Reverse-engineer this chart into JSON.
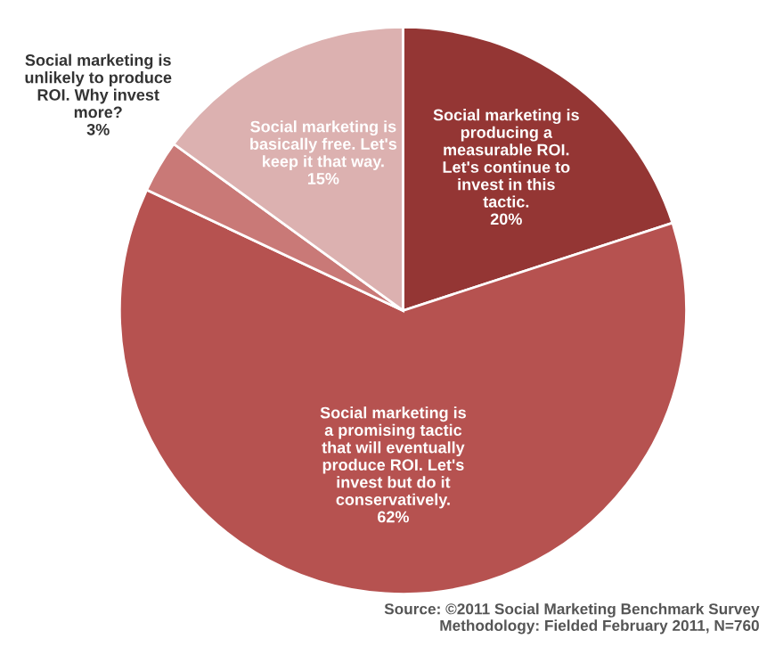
{
  "chart_data": {
    "type": "pie",
    "categories": [
      "Social marketing is\nproducing a\nmeasurable ROI.\nLet's continue to\ninvest in this\ntactic.",
      "Social marketing is\na promising tactic\nthat will eventually\nproduce ROI. Let's\ninvest but do it\nconservatively.",
      "Social marketing is\nunlikely to produce\nROI. Why invest\nmore?",
      "Social marketing is\nbasically free. Let's\nkeep it that way."
    ],
    "values": [
      20,
      62,
      3,
      15
    ],
    "value_labels": [
      "20%",
      "62%",
      "3%",
      "15%"
    ],
    "colors": [
      "#943634",
      "#b65250",
      "#c97977",
      "#dcb1b0"
    ],
    "annotations": [
      "Source: ©2011 Social Marketing Benchmark Survey\nMethodology: Fielded February 2011, N=760"
    ]
  }
}
